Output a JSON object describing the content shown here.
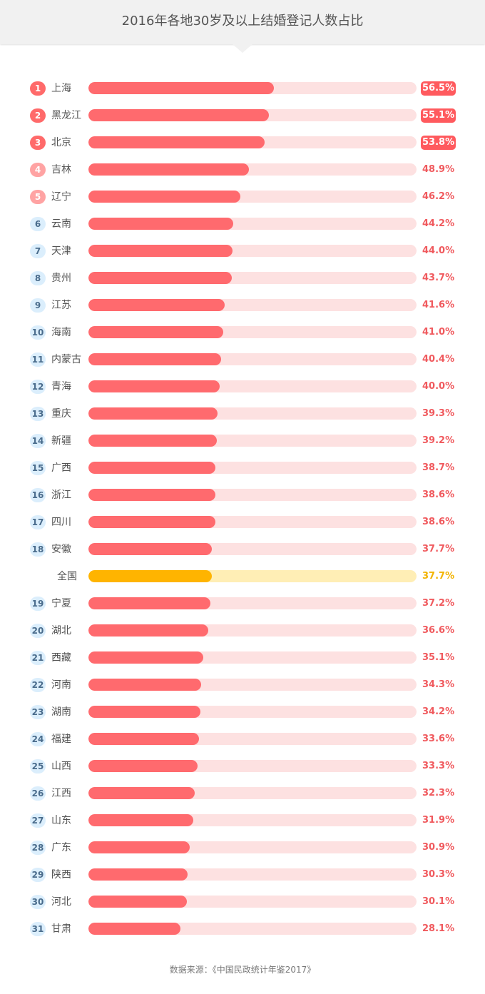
{
  "title": "2016年各地30岁及以上结婚登记人数占比",
  "source": "数据来源：《中国民政统计年鉴2017》",
  "colors": {
    "bar": "#ff6a6e",
    "track": "#fde1e1",
    "national_bar": "#ffb400",
    "national_track": "#ffeeb5",
    "value_text": "#f05a5e"
  },
  "chart_data": {
    "type": "bar",
    "orientation": "horizontal",
    "xlim": [
      0,
      100
    ],
    "unit": "%",
    "rows": [
      {
        "rank": "1",
        "name": "上海",
        "value": 56.5,
        "value_label": "56.5%",
        "badge": "top",
        "highlight": true
      },
      {
        "rank": "2",
        "name": "黑龙江",
        "value": 55.1,
        "value_label": "55.1%",
        "badge": "top",
        "highlight": true
      },
      {
        "rank": "3",
        "name": "北京",
        "value": 53.8,
        "value_label": "53.8%",
        "badge": "top",
        "highlight": true
      },
      {
        "rank": "4",
        "name": "吉林",
        "value": 48.9,
        "value_label": "48.9%",
        "badge": "mid"
      },
      {
        "rank": "5",
        "name": "辽宁",
        "value": 46.2,
        "value_label": "46.2%",
        "badge": "mid"
      },
      {
        "rank": "6",
        "name": "云南",
        "value": 44.2,
        "value_label": "44.2%",
        "badge": "low"
      },
      {
        "rank": "7",
        "name": "天津",
        "value": 44.0,
        "value_label": "44.0%",
        "badge": "low"
      },
      {
        "rank": "8",
        "name": "贵州",
        "value": 43.7,
        "value_label": "43.7%",
        "badge": "low"
      },
      {
        "rank": "9",
        "name": "江苏",
        "value": 41.6,
        "value_label": "41.6%",
        "badge": "low"
      },
      {
        "rank": "10",
        "name": "海南",
        "value": 41.0,
        "value_label": "41.0%",
        "badge": "low"
      },
      {
        "rank": "11",
        "name": "内蒙古",
        "value": 40.4,
        "value_label": "40.4%",
        "badge": "low"
      },
      {
        "rank": "12",
        "name": "青海",
        "value": 40.0,
        "value_label": "40.0%",
        "badge": "low"
      },
      {
        "rank": "13",
        "name": "重庆",
        "value": 39.3,
        "value_label": "39.3%",
        "badge": "low"
      },
      {
        "rank": "14",
        "name": "新疆",
        "value": 39.2,
        "value_label": "39.2%",
        "badge": "low"
      },
      {
        "rank": "15",
        "name": "广西",
        "value": 38.7,
        "value_label": "38.7%",
        "badge": "low"
      },
      {
        "rank": "16",
        "name": "浙江",
        "value": 38.6,
        "value_label": "38.6%",
        "badge": "low"
      },
      {
        "rank": "17",
        "name": "四川",
        "value": 38.6,
        "value_label": "38.6%",
        "badge": "low"
      },
      {
        "rank": "18",
        "name": "安徽",
        "value": 37.7,
        "value_label": "37.7%",
        "badge": "low"
      },
      {
        "rank": "",
        "name": "全国",
        "value": 37.7,
        "value_label": "37.7%",
        "badge": "none",
        "national": true
      },
      {
        "rank": "19",
        "name": "宁夏",
        "value": 37.2,
        "value_label": "37.2%",
        "badge": "low"
      },
      {
        "rank": "20",
        "name": "湖北",
        "value": 36.6,
        "value_label": "36.6%",
        "badge": "low"
      },
      {
        "rank": "21",
        "name": "西藏",
        "value": 35.1,
        "value_label": "35.1%",
        "badge": "low"
      },
      {
        "rank": "22",
        "name": "河南",
        "value": 34.3,
        "value_label": "34.3%",
        "badge": "low"
      },
      {
        "rank": "23",
        "name": "湖南",
        "value": 34.2,
        "value_label": "34.2%",
        "badge": "low"
      },
      {
        "rank": "24",
        "name": "福建",
        "value": 33.6,
        "value_label": "33.6%",
        "badge": "low"
      },
      {
        "rank": "25",
        "name": "山西",
        "value": 33.3,
        "value_label": "33.3%",
        "badge": "low"
      },
      {
        "rank": "26",
        "name": "江西",
        "value": 32.3,
        "value_label": "32.3%",
        "badge": "low"
      },
      {
        "rank": "27",
        "name": "山东",
        "value": 31.9,
        "value_label": "31.9%",
        "badge": "low"
      },
      {
        "rank": "28",
        "name": "广东",
        "value": 30.9,
        "value_label": "30.9%",
        "badge": "low"
      },
      {
        "rank": "29",
        "name": "陕西",
        "value": 30.3,
        "value_label": "30.3%",
        "badge": "low"
      },
      {
        "rank": "30",
        "name": "河北",
        "value": 30.1,
        "value_label": "30.1%",
        "badge": "low"
      },
      {
        "rank": "31",
        "name": "甘肃",
        "value": 28.1,
        "value_label": "28.1%",
        "badge": "low"
      }
    ]
  }
}
